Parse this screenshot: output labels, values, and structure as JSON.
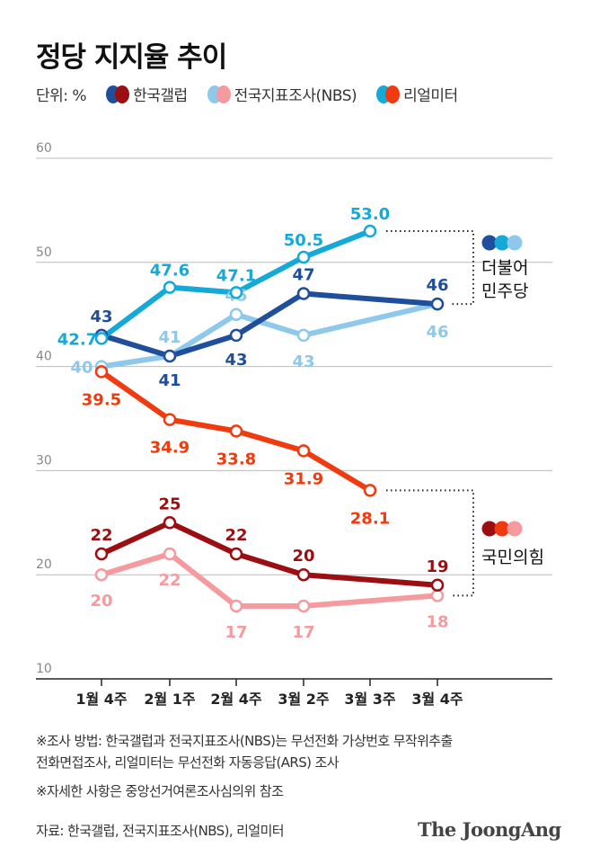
{
  "title": "정당 지지율 추이",
  "legend": {
    "unit": "단위: %",
    "items": [
      {
        "label": "한국갤럽",
        "colors": [
          "#1f4e9a",
          "#9b0e12"
        ]
      },
      {
        "label": "전국지표조사(NBS)",
        "colors": [
          "#8ec9ec",
          "#f59a9f"
        ]
      },
      {
        "label": "리얼미터",
        "colors": [
          "#14a9d6",
          "#f03a0f"
        ]
      }
    ]
  },
  "chart_data": {
    "type": "line",
    "categories": [
      "1월 4주",
      "2월 1주",
      "2월 4주",
      "3월 2주",
      "3월 3주",
      "3월 4주"
    ],
    "ylim": [
      10,
      60
    ],
    "yticks": [
      10,
      20,
      30,
      40,
      50,
      60
    ],
    "grid": true,
    "series": [
      {
        "name": "한국갤럽",
        "party": "더불어민주당",
        "color": "#1f4e9a",
        "values": [
          43,
          41,
          43,
          47,
          null,
          46
        ],
        "labels": [
          "43",
          "41",
          "43",
          "47",
          null,
          "46"
        ]
      },
      {
        "name": "전국지표조사(NBS)",
        "party": "더불어민주당",
        "color": "#8ec9ec",
        "values": [
          40,
          41,
          45,
          43,
          null,
          46
        ],
        "labels": [
          "40",
          "41",
          "45",
          "43",
          null,
          "46"
        ]
      },
      {
        "name": "리얼미터",
        "party": "더불어민주당",
        "color": "#14a9d6",
        "values": [
          42.7,
          47.6,
          47.1,
          50.5,
          53.0,
          null
        ],
        "labels": [
          "42.7",
          "47.6",
          "47.1",
          "50.5",
          "53.0",
          null
        ]
      },
      {
        "name": "한국갤럽",
        "party": "국민의힘",
        "color": "#9b0e12",
        "values": [
          22,
          25,
          22,
          20,
          null,
          19
        ],
        "labels": [
          "22",
          "25",
          "22",
          "20",
          null,
          "19"
        ]
      },
      {
        "name": "전국지표조사(NBS)",
        "party": "국민의힘",
        "color": "#f59a9f",
        "values": [
          20,
          22,
          17,
          17,
          null,
          18
        ],
        "labels": [
          "20",
          "22",
          "17",
          "17",
          null,
          "18"
        ]
      },
      {
        "name": "리얼미터",
        "party": "국민의힘",
        "color": "#f03a0f",
        "values": [
          39.5,
          34.9,
          33.8,
          31.9,
          28.1,
          null
        ],
        "labels": [
          "39.5",
          "34.9",
          "33.8",
          "31.9",
          "28.1",
          null
        ]
      }
    ],
    "party_labels": [
      {
        "lines": [
          "더불어",
          "민주당"
        ],
        "colors": [
          "#1f4e9a",
          "#14a9d6",
          "#8ec9ec"
        ]
      },
      {
        "lines": [
          "국민의힘"
        ],
        "colors": [
          "#9b0e12",
          "#f03a0f",
          "#f59a9f"
        ]
      }
    ]
  },
  "notes": [
    "※조사 방법: 한국갤럽과 전국지표조사(NBS)는 무선전화 가상번호 무작위추출",
    "전화면접조사, 리얼미터는 무선전화 자동응답(ARS) 조사",
    "※자세한 사항은 중앙선거여론조사심의위 참조"
  ],
  "source": "자료: 한국갤럽, 전국지표조사(NBS), 리얼미터",
  "logo": "The JoongAng"
}
